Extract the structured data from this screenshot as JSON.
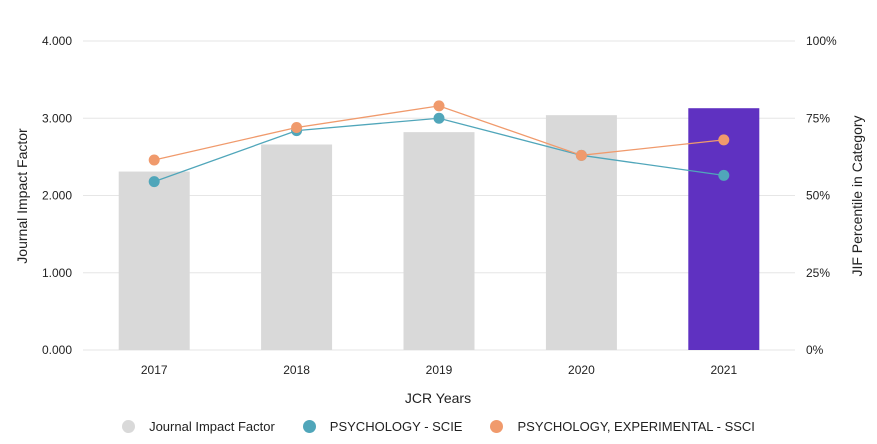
{
  "chart_data": {
    "type": "bar+line",
    "categories": [
      "2017",
      "2018",
      "2019",
      "2020",
      "2021"
    ],
    "bar_series": {
      "name": "Journal Impact Factor",
      "values": [
        2.31,
        2.66,
        2.82,
        3.04,
        3.13
      ],
      "colors": [
        "#d9d9d9",
        "#d9d9d9",
        "#d9d9d9",
        "#d9d9d9",
        "#5f31c1"
      ]
    },
    "line_series": [
      {
        "name": "PSYCHOLOGY - SCIE",
        "color": "#50a6ba",
        "values": [
          54.5,
          71,
          75,
          63,
          56.5
        ]
      },
      {
        "name": "PSYCHOLOGY, EXPERIMENTAL - SSCI",
        "color": "#f09a6c",
        "values": [
          61.5,
          72,
          79,
          63,
          68
        ]
      }
    ],
    "left_axis": {
      "title": "Journal Impact Factor",
      "range": [
        0,
        4
      ],
      "ticks": [
        0,
        1,
        2,
        3,
        4
      ],
      "tick_labels": [
        "0.000",
        "1.000",
        "2.000",
        "3.000",
        "4.000"
      ]
    },
    "right_axis": {
      "title": "JIF Percentile in Category",
      "range": [
        0,
        100
      ],
      "ticks": [
        0,
        25,
        50,
        75,
        100
      ],
      "tick_labels": [
        "0%",
        "25%",
        "50%",
        "75%",
        "100%"
      ]
    },
    "xlabel": "JCR Years",
    "grid": true,
    "legend_position": "bottom"
  },
  "legend": {
    "items": [
      {
        "label": "Journal Impact Factor",
        "color": "#d9d9d9"
      },
      {
        "label": "PSYCHOLOGY - SCIE",
        "color": "#50a6ba"
      },
      {
        "label": "PSYCHOLOGY, EXPERIMENTAL - SSCI",
        "color": "#f09a6c"
      }
    ]
  }
}
